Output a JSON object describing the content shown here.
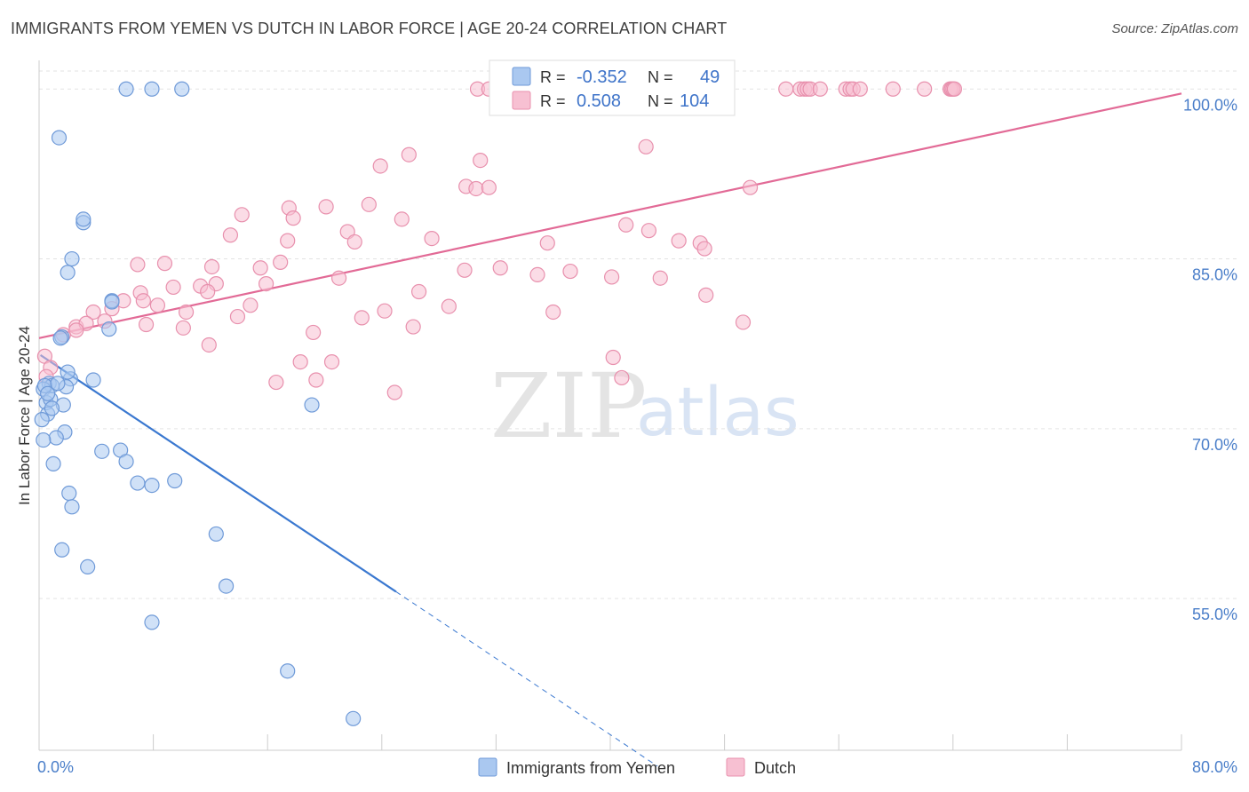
{
  "header": {
    "title": "IMMIGRANTS FROM YEMEN VS DUTCH IN LABOR FORCE | AGE 20-24 CORRELATION CHART",
    "source": "Source: ZipAtlas.com"
  },
  "watermark": {
    "zip": "ZIP",
    "atlas": "atlas"
  },
  "legend_top": {
    "rows": [
      {
        "r_label": "R =",
        "r_value": "-0.352",
        "n_label": "N =",
        "n_value": "49"
      },
      {
        "r_label": "R =",
        "r_value": "0.508",
        "n_label": "N =",
        "n_value": "104"
      }
    ]
  },
  "legend_bottom": {
    "items": [
      {
        "label": "Immigrants from Yemen"
      },
      {
        "label": "Dutch"
      }
    ]
  },
  "colors": {
    "yemen_fill": "#aac8f0",
    "yemen_stroke": "#6f9ad8",
    "yemen_line": "#3a78d0",
    "dutch_fill": "#f7c0d2",
    "dutch_stroke": "#e890ad",
    "dutch_line": "#e26a96",
    "tick_label": "#4a7ec9"
  },
  "chart_data": {
    "type": "scatter",
    "title": "IMMIGRANTS FROM YEMEN VS DUTCH IN LABOR FORCE | AGE 20-24 CORRELATION CHART",
    "xlabel": "",
    "ylabel": "In Labor Force | Age 20-24",
    "xlim": [
      0,
      80
    ],
    "ylim": [
      41.6,
      103
    ],
    "x_tick_labels": [
      "0.0%",
      "80.0%"
    ],
    "y_ticks": [
      55,
      70,
      85,
      100
    ],
    "y_tick_labels": [
      "55.0%",
      "70.0%",
      "85.0%",
      "100.0%"
    ],
    "grid": true,
    "legend_position": "top-center",
    "series": [
      {
        "name": "Immigrants from Yemen",
        "r": -0.352,
        "n": 49,
        "trend": {
          "x0": 0.1,
          "y0": 76.5,
          "x1": 25.0,
          "y1": 55.6,
          "dash_x1": 43.3,
          "dash_y1": 40.2
        },
        "points": [
          [
            6.1,
            100
          ],
          [
            7.9,
            100
          ],
          [
            10.0,
            100
          ],
          [
            1.4,
            95.7
          ],
          [
            3.1,
            88.2
          ],
          [
            3.1,
            88.5
          ],
          [
            2.3,
            85.0
          ],
          [
            2.0,
            83.8
          ],
          [
            5.1,
            81.3
          ],
          [
            5.1,
            81.2
          ],
          [
            1.6,
            78.1
          ],
          [
            4.9,
            78.8
          ],
          [
            1.5,
            78.0
          ],
          [
            0.7,
            74.0
          ],
          [
            0.9,
            73.8
          ],
          [
            0.5,
            72.3
          ],
          [
            2.2,
            74.4
          ],
          [
            3.8,
            74.3
          ],
          [
            1.9,
            73.7
          ],
          [
            0.3,
            73.5
          ],
          [
            0.4,
            73.8
          ],
          [
            0.8,
            72.6
          ],
          [
            1.7,
            72.1
          ],
          [
            0.6,
            71.3
          ],
          [
            0.2,
            70.8
          ],
          [
            19.1,
            72.1
          ],
          [
            1.8,
            69.7
          ],
          [
            1.2,
            69.2
          ],
          [
            0.3,
            69.0
          ],
          [
            4.4,
            68.0
          ],
          [
            5.7,
            68.1
          ],
          [
            6.1,
            67.1
          ],
          [
            1.0,
            66.9
          ],
          [
            6.9,
            65.2
          ],
          [
            7.9,
            65.0
          ],
          [
            9.5,
            65.4
          ],
          [
            2.1,
            64.3
          ],
          [
            2.3,
            63.1
          ],
          [
            12.4,
            60.7
          ],
          [
            1.6,
            59.3
          ],
          [
            3.4,
            57.8
          ],
          [
            13.1,
            56.1
          ],
          [
            7.9,
            52.9
          ],
          [
            17.4,
            48.6
          ],
          [
            22.0,
            44.4
          ],
          [
            0.6,
            73.1
          ],
          [
            1.3,
            74.0
          ],
          [
            0.9,
            71.8
          ],
          [
            2.0,
            75.0
          ]
        ]
      },
      {
        "name": "Dutch",
        "r": 0.508,
        "n": 104,
        "trend": {
          "x0": 0.0,
          "y0": 78.0,
          "x1": 80.0,
          "y1": 99.6
        },
        "points": [
          [
            30.7,
            100
          ],
          [
            31.5,
            100
          ],
          [
            37.0,
            100
          ],
          [
            37.2,
            100
          ],
          [
            37.5,
            100
          ],
          [
            37.8,
            100
          ],
          [
            38.1,
            100
          ],
          [
            38.3,
            100
          ],
          [
            38.5,
            100
          ],
          [
            48.0,
            100
          ],
          [
            52.3,
            100
          ],
          [
            53.3,
            100
          ],
          [
            53.6,
            100
          ],
          [
            53.8,
            100
          ],
          [
            54.0,
            100
          ],
          [
            54.7,
            100
          ],
          [
            56.5,
            100
          ],
          [
            56.8,
            100
          ],
          [
            57.0,
            100
          ],
          [
            57.5,
            100
          ],
          [
            59.8,
            100
          ],
          [
            62.0,
            100
          ],
          [
            63.8,
            100
          ],
          [
            63.9,
            100
          ],
          [
            64.0,
            100
          ],
          [
            64.1,
            100
          ],
          [
            42.5,
            94.9
          ],
          [
            30.9,
            93.7
          ],
          [
            25.9,
            94.2
          ],
          [
            23.9,
            93.2
          ],
          [
            29.9,
            91.4
          ],
          [
            30.6,
            91.2
          ],
          [
            31.5,
            91.3
          ],
          [
            49.8,
            91.3
          ],
          [
            20.1,
            89.6
          ],
          [
            23.1,
            89.8
          ],
          [
            17.5,
            89.5
          ],
          [
            14.2,
            88.9
          ],
          [
            25.4,
            88.5
          ],
          [
            17.8,
            88.6
          ],
          [
            41.1,
            88.0
          ],
          [
            17.4,
            86.6
          ],
          [
            21.6,
            87.4
          ],
          [
            42.7,
            87.5
          ],
          [
            13.4,
            87.1
          ],
          [
            27.5,
            86.8
          ],
          [
            22.1,
            86.5
          ],
          [
            35.6,
            86.4
          ],
          [
            44.8,
            86.6
          ],
          [
            46.3,
            86.4
          ],
          [
            46.6,
            85.9
          ],
          [
            8.8,
            84.6
          ],
          [
            6.9,
            84.5
          ],
          [
            12.1,
            84.3
          ],
          [
            16.9,
            84.7
          ],
          [
            15.5,
            84.2
          ],
          [
            29.8,
            84.0
          ],
          [
            32.3,
            84.2
          ],
          [
            37.2,
            83.9
          ],
          [
            40.1,
            83.4
          ],
          [
            34.9,
            83.6
          ],
          [
            43.5,
            83.3
          ],
          [
            21.0,
            83.3
          ],
          [
            12.4,
            82.8
          ],
          [
            15.9,
            82.8
          ],
          [
            11.3,
            82.6
          ],
          [
            9.4,
            82.5
          ],
          [
            7.1,
            82.0
          ],
          [
            5.9,
            81.3
          ],
          [
            11.8,
            82.1
          ],
          [
            26.6,
            82.1
          ],
          [
            46.7,
            81.8
          ],
          [
            7.3,
            81.3
          ],
          [
            8.3,
            80.9
          ],
          [
            14.8,
            80.9
          ],
          [
            28.7,
            80.8
          ],
          [
            5.1,
            80.6
          ],
          [
            10.3,
            80.3
          ],
          [
            24.2,
            80.4
          ],
          [
            36.0,
            80.3
          ],
          [
            3.8,
            80.3
          ],
          [
            13.9,
            79.9
          ],
          [
            22.6,
            79.8
          ],
          [
            49.3,
            79.4
          ],
          [
            2.6,
            79.0
          ],
          [
            3.3,
            79.3
          ],
          [
            4.6,
            79.5
          ],
          [
            7.5,
            79.2
          ],
          [
            10.1,
            78.9
          ],
          [
            26.2,
            79.0
          ],
          [
            1.7,
            78.3
          ],
          [
            2.6,
            78.7
          ],
          [
            19.2,
            78.5
          ],
          [
            11.9,
            77.4
          ],
          [
            40.2,
            76.3
          ],
          [
            18.3,
            75.9
          ],
          [
            20.5,
            75.9
          ],
          [
            40.8,
            74.5
          ],
          [
            19.4,
            74.3
          ],
          [
            16.6,
            74.1
          ],
          [
            24.9,
            73.2
          ],
          [
            0.4,
            76.4
          ],
          [
            0.8,
            75.4
          ],
          [
            0.5,
            74.6
          ]
        ]
      }
    ]
  }
}
